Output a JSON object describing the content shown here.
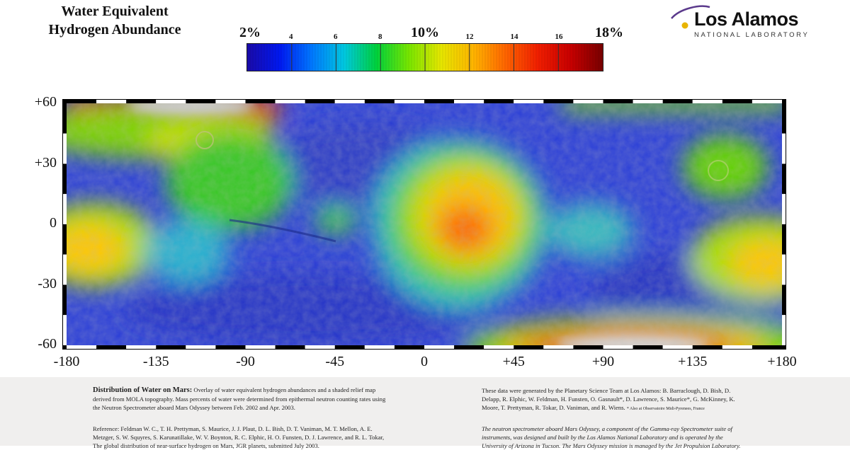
{
  "title": {
    "line1": "Water Equivalent",
    "line2": "Hydrogen Abundance"
  },
  "colorbar": {
    "labels": [
      {
        "text": "2%",
        "major": true,
        "pos": 0.0
      },
      {
        "text": "4",
        "major": false,
        "pos": 0.125
      },
      {
        "text": "6",
        "major": false,
        "pos": 0.25
      },
      {
        "text": "8",
        "major": false,
        "pos": 0.375
      },
      {
        "text": "10%",
        "major": true,
        "pos": 0.5
      },
      {
        "text": "12",
        "major": false,
        "pos": 0.625
      },
      {
        "text": "14",
        "major": false,
        "pos": 0.75
      },
      {
        "text": "16",
        "major": false,
        "pos": 0.875
      },
      {
        "text": "18%",
        "major": true,
        "pos": 1.0
      }
    ],
    "min": 2,
    "max": 18,
    "colors": [
      "#1a0aa8",
      "#0018f0",
      "#0078ff",
      "#00c8e0",
      "#00d23c",
      "#78e600",
      "#e6e600",
      "#ffb400",
      "#ff6400",
      "#f01e00",
      "#c80000",
      "#780000"
    ]
  },
  "logo": {
    "name": "Los Alamos",
    "sub": "NATIONAL LABORATORY"
  },
  "map": {
    "y_ticks": [
      "+60",
      "+30",
      "0",
      "-30",
      "-60"
    ],
    "x_ticks": [
      "-180",
      "-135",
      "-90",
      "-45",
      "0",
      "+45",
      "+90",
      "+135",
      "+180"
    ],
    "lat_range": [
      -60,
      60
    ],
    "lon_range": [
      -180,
      180
    ]
  },
  "caption_left": {
    "heading": "Distribution of Water on Mars:",
    "body": "Overlay of water equivalent hydrogen abundances and a shaded relief map derived from MOLA topography. Mass percents of water were determined from epithermal neutron counting rates using the Neutron Spectrometer aboard Mars Odyssey between Feb. 2002 and Apr. 2003.",
    "reference": "Reference: Feldman W. C., T. H. Prettyman, S. Maurice, J. J. Plaut, D. L. Bish, D. T. Vaniman, M. T. Mellon, A. E. Metzger, S. W. Squyres, S. Karunatillake, W. V. Boynton, R. C. Elphic, H. O. Funsten, D. J. Lawrence, and R. L. Tokar, The global distribution of near-surface hydrogen on Mars, JGR planets, submitted July 2003."
  },
  "caption_right": {
    "team": "These data were generated by the Planetary Science Team at Los Alamos: B. Barraclough, D. Bish, D. Delapp, R. Elphic, W. Feldman, H. Funsten, O. Gasnault*, D. Lawrence, S. Maurice*, G. McKinney, K. Moore, T. Prettyman, R. Tokar, D. Vaniman, and R. Wiens.",
    "footnote": "* Also at Observatoire Midi-Pyrenees, France",
    "instrument": "The neutron spectrometer aboard Mars Odyssey, a component of the Gamma-ray Spectrometer suite of instruments, was designed and built by the Los Alamos National Laboratory and is operated by the University of Arizona in Tucson. The Mars Odyssey mission is managed by the Jet Propulsion Laboratory."
  }
}
